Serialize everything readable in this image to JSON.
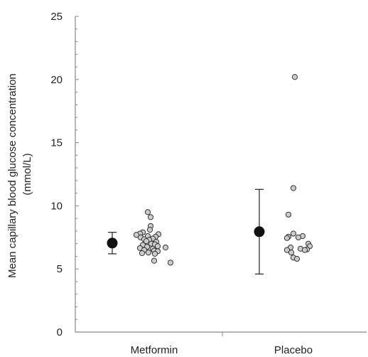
{
  "chart_data": {
    "type": "scatter",
    "ylabel_line1": "Mean capillary blood glucose concentration",
    "ylabel_line2": "(mmol/L)",
    "ylim": [
      0,
      25
    ],
    "yticks": [
      0,
      5,
      10,
      15,
      20,
      25
    ],
    "yminor_step": 1,
    "grid": false,
    "categories": [
      "Metformin",
      "Placebo"
    ],
    "colors": {
      "point_fill": "#cccccc",
      "point_stroke": "#333333",
      "mean_fill": "#111111",
      "axis": "#888888",
      "errorbar": "#222222"
    },
    "series": [
      {
        "category": "Metformin",
        "points": [
          9.5,
          9.1,
          8.4,
          8.1,
          7.9,
          7.8,
          7.75,
          7.7,
          7.6,
          7.55,
          7.5,
          7.4,
          7.35,
          7.3,
          7.2,
          7.15,
          7.0,
          6.95,
          6.9,
          6.8,
          6.75,
          6.7,
          6.65,
          6.6,
          6.5,
          6.45,
          6.4,
          6.3,
          6.25,
          6.2,
          5.65,
          5.5
        ],
        "mean": 7.05,
        "error_low": 6.2,
        "error_high": 7.9
      },
      {
        "category": "Placebo",
        "points": [
          20.2,
          11.4,
          9.3,
          7.8,
          7.6,
          7.55,
          7.5,
          7.45,
          7.0,
          6.8,
          6.7,
          6.6,
          6.55,
          6.5,
          6.5,
          6.3,
          5.9,
          5.8
        ],
        "mean": 7.95,
        "error_low": 4.6,
        "error_high": 11.3
      }
    ]
  }
}
